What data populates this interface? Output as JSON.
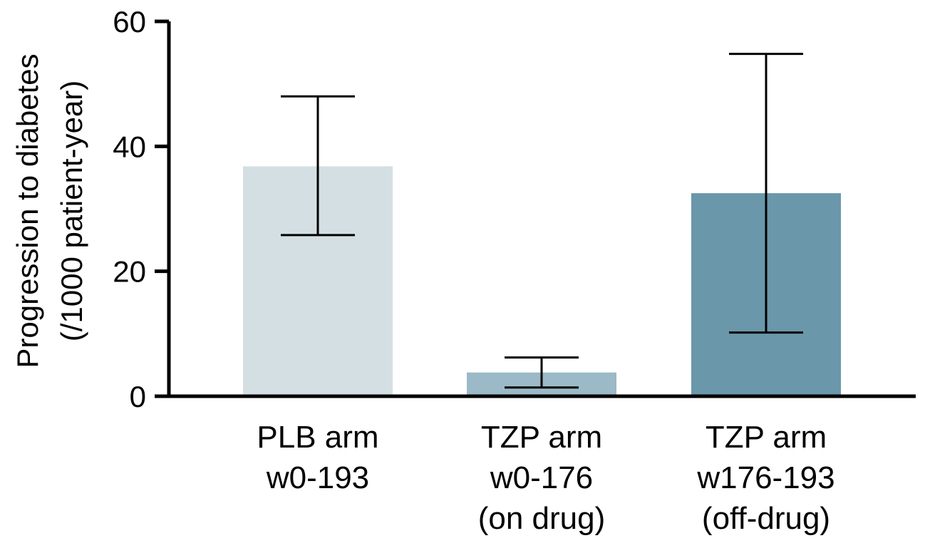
{
  "chart_data": {
    "type": "bar",
    "title": "",
    "xlabel": "",
    "ylabel_lines": [
      "Progression to diabetes",
      "(/1000 patient-year)"
    ],
    "ylim": [
      0,
      60
    ],
    "yticks": [
      0,
      20,
      40,
      60
    ],
    "categories": [
      {
        "lines": [
          "PLB arm",
          "w0-193"
        ]
      },
      {
        "lines": [
          "TZP arm",
          "w0-176",
          "(on drug)"
        ]
      },
      {
        "lines": [
          "TZP arm",
          "w176-193",
          "(off-drug)"
        ]
      }
    ],
    "values": [
      36.8,
      3.8,
      32.5
    ],
    "error_low": [
      25.8,
      1.4,
      10.2
    ],
    "error_high": [
      48.0,
      6.2,
      54.8
    ],
    "colors": [
      "#d3dfe3",
      "#9bb9c6",
      "#6a97aa"
    ],
    "grid": false,
    "legend": "none"
  }
}
